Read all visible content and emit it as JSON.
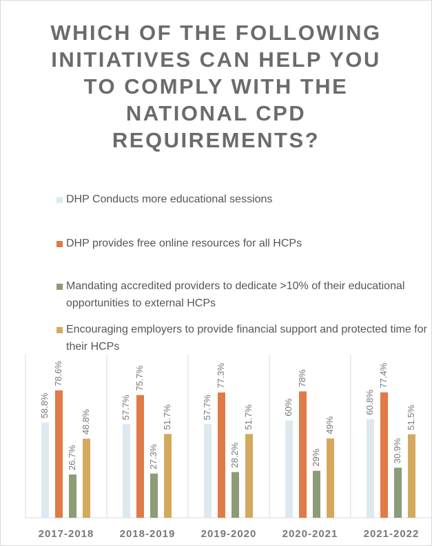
{
  "chart_data": {
    "type": "bar",
    "title": "WHICH OF THE FOLLOWING INITIATIVES CAN HELP YOU TO COMPLY WITH THE NATIONAL CPD REQUIREMENTS?",
    "categories": [
      "2017-2018",
      "2018-2019",
      "2019-2020",
      "2020-2021",
      "2021-2022"
    ],
    "series": [
      {
        "name": "DHP Conducts more educational sessions",
        "color": "#dde8ef",
        "values": [
          58.8,
          57.7,
          57.7,
          60,
          60.8
        ],
        "value_labels": [
          "58.8%",
          "57.7%",
          "57.7%",
          "60%",
          "60.8%"
        ]
      },
      {
        "name": "DHP provides free online resources for all HCPs",
        "color": "#e07a47",
        "values": [
          78.6,
          75.7,
          77.3,
          78,
          77.4
        ],
        "value_labels": [
          "78.6%",
          "75.7%",
          "77.3%",
          "78%",
          "77.4%"
        ]
      },
      {
        "name": "Mandating accredited providers to dedicate >10% of their educational opportunities to external HCPs",
        "color": "#8b9c76",
        "values": [
          26.7,
          27.3,
          28.2,
          29,
          30.9
        ],
        "value_labels": [
          "26.7%",
          "27.3%",
          "28.2%",
          "29%",
          "30.9%"
        ]
      },
      {
        "name": "Encouraging employers to provide financial support and protected time for their HCPs",
        "color": "#d4a95e",
        "values": [
          48.8,
          51.7,
          51.7,
          49,
          51.5
        ],
        "value_labels": [
          "48.8%",
          "51.7%",
          "51.7%",
          "49%",
          "51.5%"
        ]
      }
    ]
  }
}
